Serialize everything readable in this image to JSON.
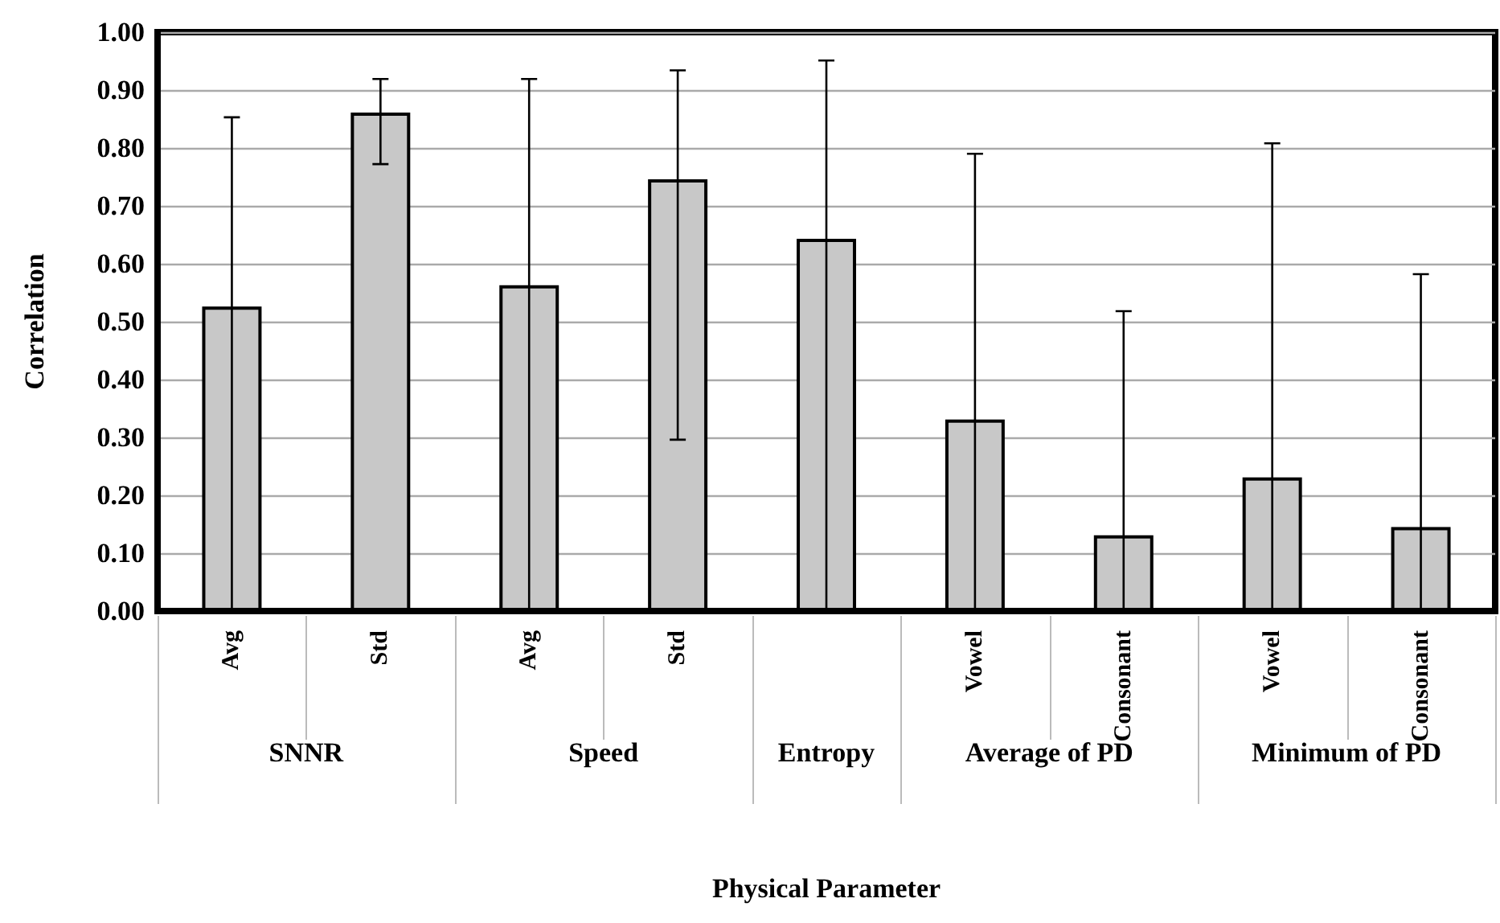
{
  "chart_data": {
    "type": "bar",
    "xlabel": "Physical Parameter",
    "ylabel": "Correlation",
    "categories": [
      "Avg",
      "Std",
      "Avg",
      "Std",
      null,
      "Vowel",
      "Consonant",
      "Vowel",
      "Consonant"
    ],
    "values": [
      0.526,
      0.861,
      0.563,
      0.746,
      0.643,
      0.331,
      0.131,
      0.231,
      0.145
    ],
    "errors": [
      [
        0,
        0.853
      ],
      [
        0.772,
        0.919
      ],
      [
        0,
        0.919
      ],
      [
        0.296,
        0.934
      ],
      [
        0,
        0.951
      ],
      [
        0,
        0.79
      ],
      [
        0,
        0.518
      ],
      [
        0,
        0.808
      ],
      [
        0,
        0.582
      ]
    ],
    "color": "#c8c8c8",
    "annotations": [
      "SNNR",
      "Speed",
      "Entropy",
      "Average of PD",
      "Minimum of PD"
    ],
    "ylim": [
      0,
      1
    ],
    "yticks": [
      {
        "value": 0,
        "label": "0.00"
      },
      {
        "value": 0.1,
        "label": "0.10"
      },
      {
        "value": 0.2,
        "label": "0.20"
      },
      {
        "value": 0.3,
        "label": "0.30"
      },
      {
        "value": 0.4,
        "label": "0.40"
      },
      {
        "value": 0.5,
        "label": "0.50"
      },
      {
        "value": 0.6,
        "label": "0.60"
      },
      {
        "value": 0.7,
        "label": "0.70"
      },
      {
        "value": 0.8,
        "label": "0.80"
      },
      {
        "value": 0.9,
        "label": "0.90"
      },
      {
        "value": 1,
        "label": "1.00"
      }
    ],
    "grid": "y"
  }
}
